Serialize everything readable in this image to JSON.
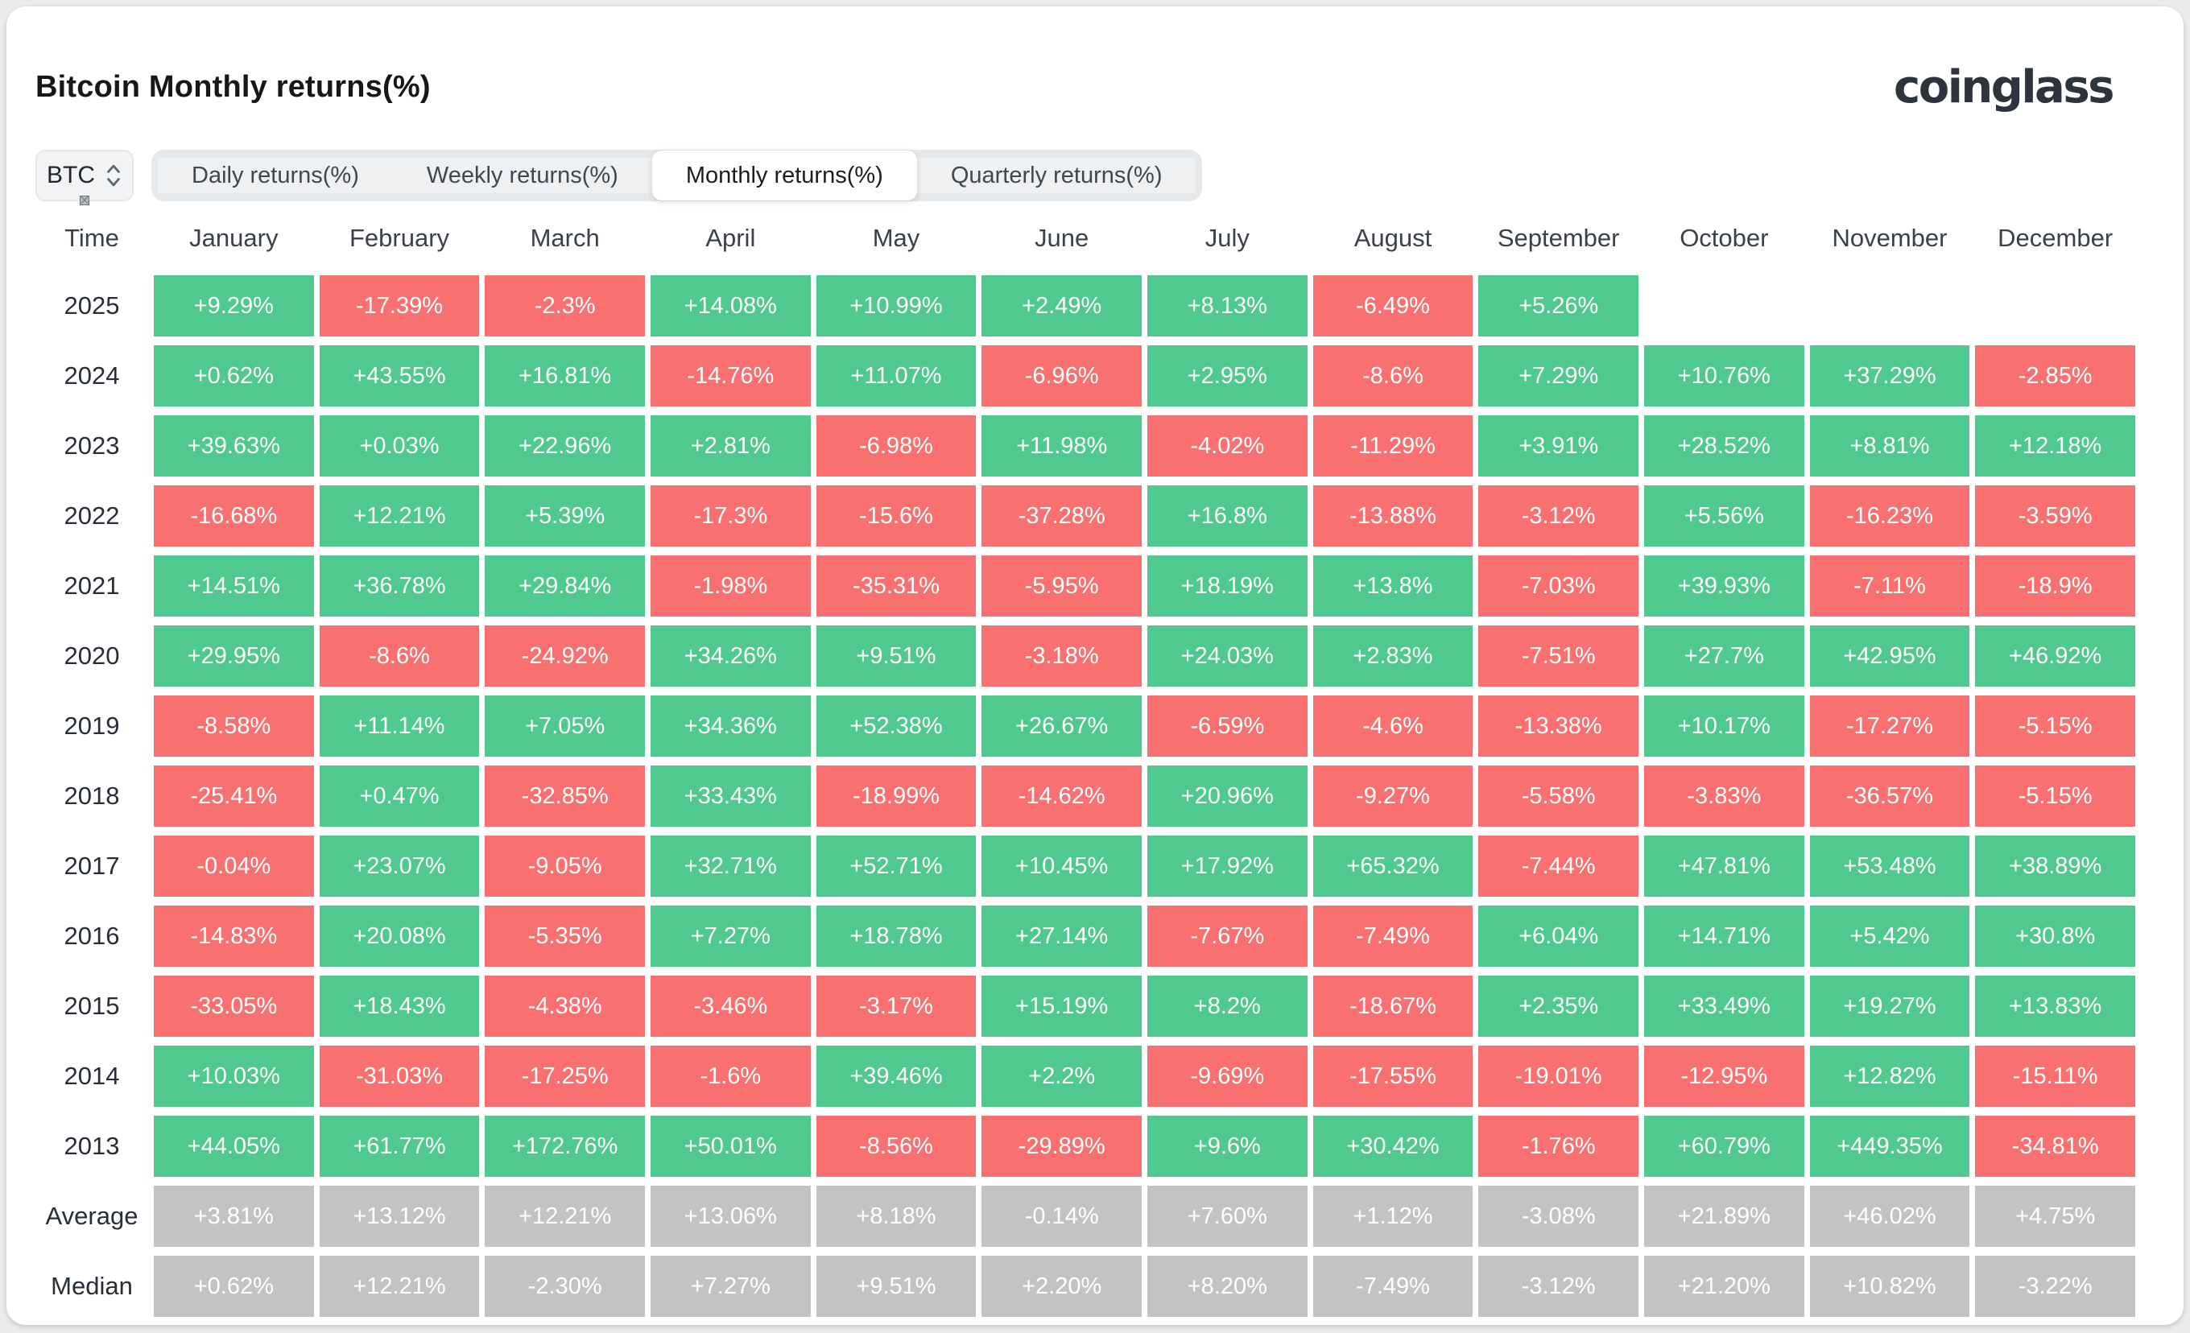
{
  "page": {
    "title": "Bitcoin Monthly returns(%)",
    "logo": "coinglass"
  },
  "controls": {
    "symbol_selector": {
      "value": "BTC"
    },
    "tabs": [
      {
        "label": "Daily returns(%)",
        "active": false
      },
      {
        "label": "Weekly returns(%)",
        "active": false
      },
      {
        "label": "Monthly returns(%)",
        "active": true
      },
      {
        "label": "Quarterly returns(%)",
        "active": false
      }
    ]
  },
  "chart_data": {
    "type": "heatmap",
    "title": "Bitcoin Monthly returns(%)",
    "row_header": "Time",
    "columns": [
      "January",
      "February",
      "March",
      "April",
      "May",
      "June",
      "July",
      "August",
      "September",
      "October",
      "November",
      "December"
    ],
    "rows": [
      {
        "label": "2025",
        "type": "year",
        "values": [
          "+9.29%",
          "-17.39%",
          "-2.3%",
          "+14.08%",
          "+10.99%",
          "+2.49%",
          "+8.13%",
          "-6.49%",
          "+5.26%",
          "",
          "",
          ""
        ]
      },
      {
        "label": "2024",
        "type": "year",
        "values": [
          "+0.62%",
          "+43.55%",
          "+16.81%",
          "-14.76%",
          "+11.07%",
          "-6.96%",
          "+2.95%",
          "-8.6%",
          "+7.29%",
          "+10.76%",
          "+37.29%",
          "-2.85%"
        ]
      },
      {
        "label": "2023",
        "type": "year",
        "values": [
          "+39.63%",
          "+0.03%",
          "+22.96%",
          "+2.81%",
          "-6.98%",
          "+11.98%",
          "-4.02%",
          "-11.29%",
          "+3.91%",
          "+28.52%",
          "+8.81%",
          "+12.18%"
        ]
      },
      {
        "label": "2022",
        "type": "year",
        "values": [
          "-16.68%",
          "+12.21%",
          "+5.39%",
          "-17.3%",
          "-15.6%",
          "-37.28%",
          "+16.8%",
          "-13.88%",
          "-3.12%",
          "+5.56%",
          "-16.23%",
          "-3.59%"
        ]
      },
      {
        "label": "2021",
        "type": "year",
        "values": [
          "+14.51%",
          "+36.78%",
          "+29.84%",
          "-1.98%",
          "-35.31%",
          "-5.95%",
          "+18.19%",
          "+13.8%",
          "-7.03%",
          "+39.93%",
          "-7.11%",
          "-18.9%"
        ]
      },
      {
        "label": "2020",
        "type": "year",
        "values": [
          "+29.95%",
          "-8.6%",
          "-24.92%",
          "+34.26%",
          "+9.51%",
          "-3.18%",
          "+24.03%",
          "+2.83%",
          "-7.51%",
          "+27.7%",
          "+42.95%",
          "+46.92%"
        ]
      },
      {
        "label": "2019",
        "type": "year",
        "values": [
          "-8.58%",
          "+11.14%",
          "+7.05%",
          "+34.36%",
          "+52.38%",
          "+26.67%",
          "-6.59%",
          "-4.6%",
          "-13.38%",
          "+10.17%",
          "-17.27%",
          "-5.15%"
        ]
      },
      {
        "label": "2018",
        "type": "year",
        "values": [
          "-25.41%",
          "+0.47%",
          "-32.85%",
          "+33.43%",
          "-18.99%",
          "-14.62%",
          "+20.96%",
          "-9.27%",
          "-5.58%",
          "-3.83%",
          "-36.57%",
          "-5.15%"
        ]
      },
      {
        "label": "2017",
        "type": "year",
        "values": [
          "-0.04%",
          "+23.07%",
          "-9.05%",
          "+32.71%",
          "+52.71%",
          "+10.45%",
          "+17.92%",
          "+65.32%",
          "-7.44%",
          "+47.81%",
          "+53.48%",
          "+38.89%"
        ]
      },
      {
        "label": "2016",
        "type": "year",
        "values": [
          "-14.83%",
          "+20.08%",
          "-5.35%",
          "+7.27%",
          "+18.78%",
          "+27.14%",
          "-7.67%",
          "-7.49%",
          "+6.04%",
          "+14.71%",
          "+5.42%",
          "+30.8%"
        ]
      },
      {
        "label": "2015",
        "type": "year",
        "values": [
          "-33.05%",
          "+18.43%",
          "-4.38%",
          "-3.46%",
          "-3.17%",
          "+15.19%",
          "+8.2%",
          "-18.67%",
          "+2.35%",
          "+33.49%",
          "+19.27%",
          "+13.83%"
        ]
      },
      {
        "label": "2014",
        "type": "year",
        "values": [
          "+10.03%",
          "-31.03%",
          "-17.25%",
          "-1.6%",
          "+39.46%",
          "+2.2%",
          "-9.69%",
          "-17.55%",
          "-19.01%",
          "-12.95%",
          "+12.82%",
          "-15.11%"
        ]
      },
      {
        "label": "2013",
        "type": "year",
        "values": [
          "+44.05%",
          "+61.77%",
          "+172.76%",
          "+50.01%",
          "-8.56%",
          "-29.89%",
          "+9.6%",
          "+30.42%",
          "-1.76%",
          "+60.79%",
          "+449.35%",
          "-34.81%"
        ]
      },
      {
        "label": "Average",
        "type": "summary",
        "values": [
          "+3.81%",
          "+13.12%",
          "+12.21%",
          "+13.06%",
          "+8.18%",
          "-0.14%",
          "+7.60%",
          "+1.12%",
          "-3.08%",
          "+21.89%",
          "+46.02%",
          "+4.75%"
        ]
      },
      {
        "label": "Median",
        "type": "summary",
        "values": [
          "+0.62%",
          "+12.21%",
          "-2.30%",
          "+7.27%",
          "+9.51%",
          "+2.20%",
          "+8.20%",
          "-7.49%",
          "-3.12%",
          "+21.20%",
          "+10.82%",
          "-3.22%"
        ]
      }
    ],
    "colors": {
      "positive": "#4FC98D",
      "negative": "#F87070",
      "summary": "#C3C3C3"
    }
  }
}
